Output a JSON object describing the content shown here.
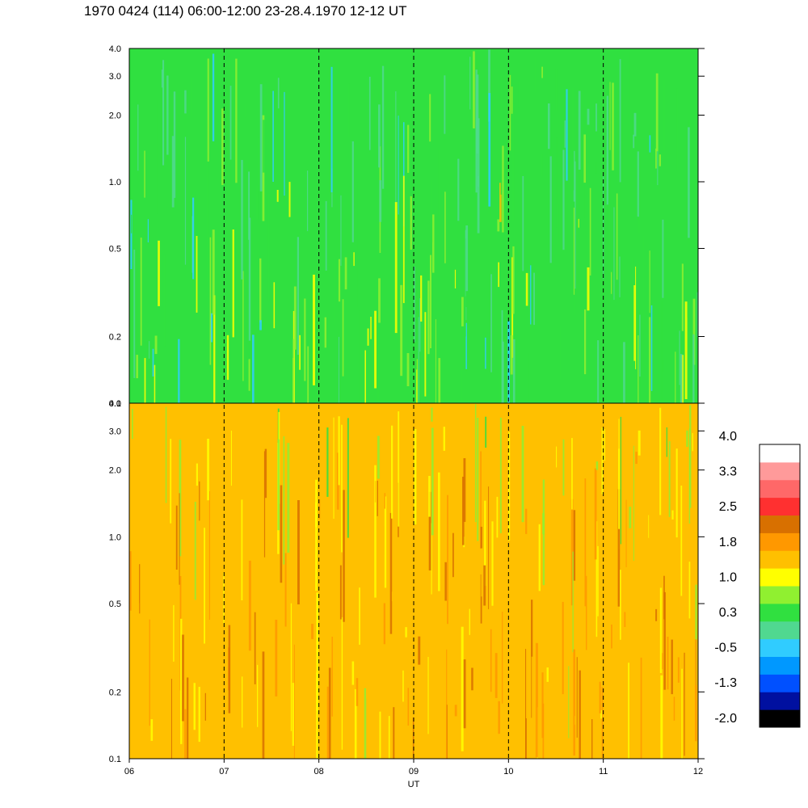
{
  "title": "1970 0424 (114) 06:00-12:00 23-28.4.1970  12-12 UT",
  "chart_data": {
    "type": "heatmap",
    "panels": [
      {
        "name": "",
        "y_scale": "log",
        "ylim": [
          0.1,
          4.0
        ],
        "dominant_level": 0.6
      },
      {
        "name": "",
        "y_scale": "log",
        "ylim": [
          0.1,
          4.0
        ],
        "dominant_level": 1.7
      }
    ],
    "y_ticks": [
      0.1,
      0.2,
      0.5,
      1.0,
      2.0,
      3.0,
      4.0
    ],
    "y_tick_labels": [
      "0.1",
      "0.2",
      "0.5",
      "1.0",
      "2.0",
      "3.0",
      "4.0"
    ],
    "x_ticks": [
      6,
      7,
      8,
      9,
      10,
      11,
      12
    ],
    "x_tick_labels": [
      "06",
      "07",
      "08",
      "09",
      "10",
      "11",
      "12"
    ],
    "xlabel": "UT",
    "xlim": [
      6,
      12
    ],
    "hour_markers": [
      7,
      8,
      9,
      10,
      11
    ],
    "colorbar": {
      "labels": [
        "4.0",
        "3.3",
        "2.5",
        "1.8",
        "1.0",
        "0.3",
        "-0.5",
        "-1.3",
        "-2.0"
      ],
      "range": [
        -2.0,
        4.0
      ],
      "colors": [
        "#000000",
        "#0010a0",
        "#0050ff",
        "#0098ff",
        "#30ccff",
        "#50d890",
        "#30e040",
        "#90f030",
        "#ffff00",
        "#ffc000",
        "#ff9800",
        "#d87000",
        "#ff3030",
        "#ff6868",
        "#ff9a9a",
        "#ffffff"
      ]
    }
  }
}
